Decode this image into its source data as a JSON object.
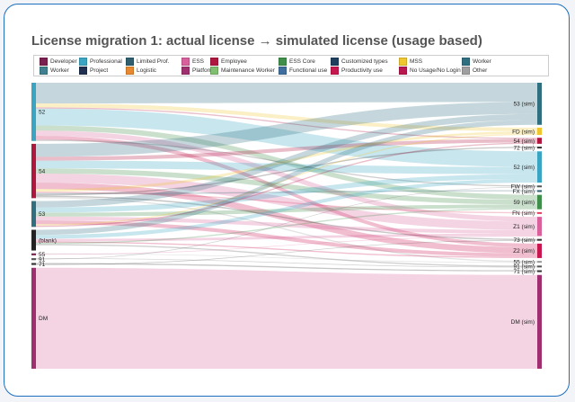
{
  "title": "License migration 1: actual license → simulated license (usage based)",
  "legend": [
    {
      "label": "Developer",
      "color": "#7b1f4e"
    },
    {
      "label": "Professional",
      "color": "#3aa5c2"
    },
    {
      "label": "Limited Prof.",
      "color": "#2f5f6e"
    },
    {
      "label": "ESS",
      "color": "#d9609a"
    },
    {
      "label": "Employee",
      "color": "#b0173f"
    },
    {
      "label": "ESS Core",
      "color": "#3f8f4a"
    },
    {
      "label": "Customized types",
      "color": "#1f3f5f"
    },
    {
      "label": "MSS",
      "color": "#f0c62e"
    },
    {
      "label": "Worker",
      "color": "#2f6f80"
    },
    {
      "label": "Worker",
      "color": "#3f7f8f"
    },
    {
      "label": "Project",
      "color": "#1f2f4f"
    },
    {
      "label": "Logistic",
      "color": "#e8892f"
    },
    {
      "label": "Platform",
      "color": "#9f2f6f"
    },
    {
      "label": "Maintenance Worker",
      "color": "#7fbf6f"
    },
    {
      "label": "Functional use",
      "color": "#3f6f9f"
    },
    {
      "label": "Productivity use",
      "color": "#c8174f"
    },
    {
      "label": "No Usage/No Login",
      "color": "#b8174f"
    },
    {
      "label": "Other",
      "color": "#9f9f9f"
    }
  ],
  "chart_data": {
    "type": "sankey",
    "title": "License migration 1: actual license → simulated license (usage based)",
    "sources": [
      {
        "name": "52",
        "value": 45,
        "color": "#3aa5c2"
      },
      {
        "name": "54",
        "value": 42,
        "color": "#b0173f"
      },
      {
        "name": "53",
        "value": 20,
        "color": "#2f6f80"
      },
      {
        "name": "(blank)",
        "value": 16,
        "color": "#222222"
      },
      {
        "name": "55",
        "value": 1.5,
        "color": "#7b1f4e"
      },
      {
        "name": "91",
        "value": 1.5,
        "color": "#555555"
      },
      {
        "name": "71",
        "value": 1.5,
        "color": "#333333"
      },
      {
        "name": "DM",
        "value": 78,
        "color": "#9f2f6f"
      }
    ],
    "targets": [
      {
        "name": "53 (sim)",
        "value": 35,
        "color": "#2f6f80"
      },
      {
        "name": "FD (sim)",
        "value": 6,
        "color": "#f0c62e"
      },
      {
        "name": "54 (sim)",
        "value": 5,
        "color": "#b0173f"
      },
      {
        "name": "72 (sim)",
        "value": 1.5,
        "color": "#333333"
      },
      {
        "name": "52 (sim)",
        "value": 26,
        "color": "#3aa5c2"
      },
      {
        "name": "FW (sim)",
        "value": 1.5,
        "color": "#555555"
      },
      {
        "name": "FX (sim)",
        "value": 1.5,
        "color": "#2f5f6e"
      },
      {
        "name": "59 (sim)",
        "value": 12,
        "color": "#3f8f4a"
      },
      {
        "name": "FN (sim)",
        "value": 1.5,
        "color": "#e04060"
      },
      {
        "name": "Z1 (sim)",
        "value": 16,
        "color": "#d9609a"
      },
      {
        "name": "73 (sim)",
        "value": 1.5,
        "color": "#333333"
      },
      {
        "name": "Z2 (sim)",
        "value": 12,
        "color": "#c8174f"
      },
      {
        "name": "55 (sim)",
        "value": 1.5,
        "color": "#999999"
      },
      {
        "name": "91 (sim)",
        "value": 1.5,
        "color": "#555555"
      },
      {
        "name": "71 (sim)",
        "value": 1.5,
        "color": "#333333"
      },
      {
        "name": "DM (sim)",
        "value": 78,
        "color": "#9f2f6f"
      }
    ],
    "links": [
      {
        "source": "52",
        "target": "53 (sim)",
        "value": 16,
        "color": "#2f6f80"
      },
      {
        "source": "52",
        "target": "FD (sim)",
        "value": 3,
        "color": "#f0c62e"
      },
      {
        "source": "52",
        "target": "54 (sim)",
        "value": 1,
        "color": "#b0173f"
      },
      {
        "source": "52",
        "target": "52 (sim)",
        "value": 13,
        "color": "#3aa5c2"
      },
      {
        "source": "52",
        "target": "59 (sim)",
        "value": 4,
        "color": "#3f8f4a"
      },
      {
        "source": "52",
        "target": "Z1 (sim)",
        "value": 4,
        "color": "#d9609a"
      },
      {
        "source": "52",
        "target": "Z2 (sim)",
        "value": 3,
        "color": "#c8174f"
      },
      {
        "source": "52",
        "target": "FW (sim)",
        "value": 1,
        "color": "#555555"
      },
      {
        "source": "54",
        "target": "53 (sim)",
        "value": 10,
        "color": "#2f6f80"
      },
      {
        "source": "54",
        "target": "54 (sim)",
        "value": 3,
        "color": "#b0173f"
      },
      {
        "source": "54",
        "target": "52 (sim)",
        "value": 6,
        "color": "#3aa5c2"
      },
      {
        "source": "54",
        "target": "59 (sim)",
        "value": 4,
        "color": "#3f8f4a"
      },
      {
        "source": "54",
        "target": "Z1 (sim)",
        "value": 7,
        "color": "#d9609a"
      },
      {
        "source": "54",
        "target": "Z2 (sim)",
        "value": 5,
        "color": "#c8174f"
      },
      {
        "source": "54",
        "target": "FD (sim)",
        "value": 2,
        "color": "#f0c62e"
      },
      {
        "source": "54",
        "target": "FN (sim)",
        "value": 1,
        "color": "#e04060"
      },
      {
        "source": "54",
        "target": "FX (sim)",
        "value": 1,
        "color": "#2f5f6e"
      },
      {
        "source": "54",
        "target": "72 (sim)",
        "value": 1,
        "color": "#333333"
      },
      {
        "source": "54",
        "target": "73 (sim)",
        "value": 1,
        "color": "#333333"
      },
      {
        "source": "54",
        "target": "55 (sim)",
        "value": 1,
        "color": "#999999"
      },
      {
        "source": "53",
        "target": "53 (sim)",
        "value": 5,
        "color": "#2f6f80"
      },
      {
        "source": "53",
        "target": "52 (sim)",
        "value": 4,
        "color": "#3aa5c2"
      },
      {
        "source": "53",
        "target": "59 (sim)",
        "value": 3,
        "color": "#3f8f4a"
      },
      {
        "source": "53",
        "target": "Z1 (sim)",
        "value": 3,
        "color": "#d9609a"
      },
      {
        "source": "53",
        "target": "Z2 (sim)",
        "value": 3,
        "color": "#c8174f"
      },
      {
        "source": "53",
        "target": "FD (sim)",
        "value": 1,
        "color": "#f0c62e"
      },
      {
        "source": "53",
        "target": "54 (sim)",
        "value": 1,
        "color": "#b0173f"
      },
      {
        "source": "(blank)",
        "target": "53 (sim)",
        "value": 4,
        "color": "#2f6f80"
      },
      {
        "source": "(blank)",
        "target": "52 (sim)",
        "value": 3,
        "color": "#3aa5c2"
      },
      {
        "source": "(blank)",
        "target": "Z1 (sim)",
        "value": 2,
        "color": "#d9609a"
      },
      {
        "source": "(blank)",
        "target": "Z2 (sim)",
        "value": 1,
        "color": "#c8174f"
      },
      {
        "source": "(blank)",
        "target": "59 (sim)",
        "value": 1,
        "color": "#3f8f4a"
      },
      {
        "source": "(blank)",
        "target": "91 (sim)",
        "value": 1,
        "color": "#555555"
      },
      {
        "source": "55",
        "target": "55 (sim)",
        "value": 0.5,
        "color": "#999999"
      },
      {
        "source": "55",
        "target": "Z1 (sim)",
        "value": 0.5,
        "color": "#d9609a"
      },
      {
        "source": "91",
        "target": "91 (sim)",
        "value": 0.5,
        "color": "#555555"
      },
      {
        "source": "91",
        "target": "FW (sim)",
        "value": 0.5,
        "color": "#555555"
      },
      {
        "source": "71",
        "target": "71 (sim)",
        "value": 1,
        "color": "#333333"
      },
      {
        "source": "71",
        "target": "73 (sim)",
        "value": 0.5,
        "color": "#333333"
      },
      {
        "source": "DM",
        "target": "DM (sim)",
        "value": 78,
        "color": "#d9609a"
      }
    ]
  }
}
